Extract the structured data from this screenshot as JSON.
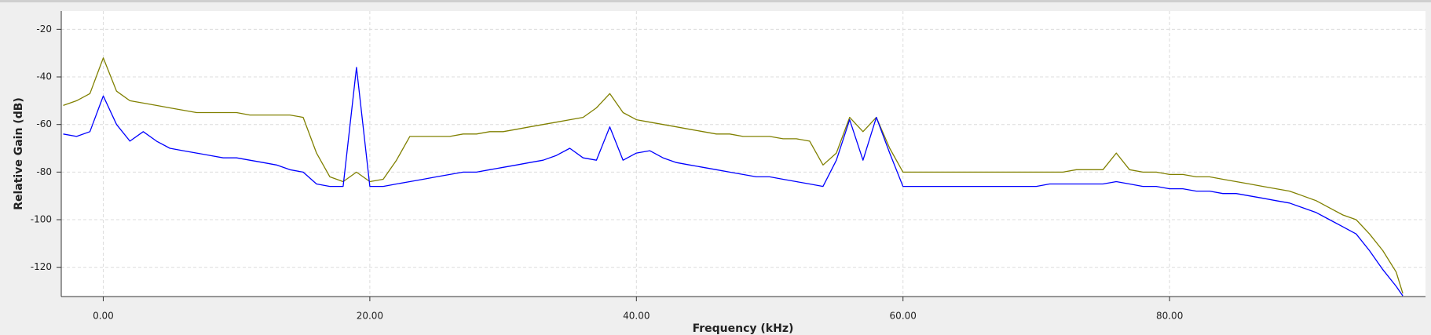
{
  "chart_data": {
    "type": "line",
    "xlabel": "Frequency (kHz)",
    "ylabel": "Relative Gain (dB)",
    "x": [
      -3,
      -2,
      -1,
      0,
      1,
      2,
      3,
      4,
      5,
      6,
      7,
      8,
      9,
      10,
      11,
      12,
      13,
      14,
      15,
      16,
      17,
      18,
      19,
      20,
      21,
      22,
      23,
      24,
      25,
      26,
      27,
      28,
      29,
      30,
      31,
      32,
      33,
      34,
      35,
      36,
      37,
      38,
      39,
      40,
      41,
      42,
      43,
      44,
      45,
      46,
      47,
      48,
      49,
      50,
      51,
      52,
      53,
      54,
      55,
      56,
      57,
      58,
      59,
      60,
      61,
      62,
      63,
      64,
      65,
      66,
      67,
      68,
      69,
      70,
      71,
      72,
      73,
      74,
      75,
      76,
      77,
      78,
      79,
      80,
      81,
      82,
      83,
      84,
      85,
      86,
      87,
      88,
      89,
      90,
      91,
      92,
      93,
      94,
      95,
      96,
      97,
      97.5
    ],
    "series": [
      {
        "color": "#808000",
        "values": [
          -52,
          -50,
          -47,
          -32,
          -46,
          -50,
          -51,
          -52,
          -53,
          -54,
          -55,
          -55,
          -55,
          -55,
          -56,
          -56,
          -56,
          -56,
          -57,
          -72,
          -82,
          -84,
          -80,
          -84,
          -83,
          -75,
          -65,
          -65,
          -65,
          -65,
          -64,
          -64,
          -63,
          -63,
          -62,
          -61,
          -60,
          -59,
          -58,
          -57,
          -53,
          -47,
          -55,
          -58,
          -59,
          -60,
          -61,
          -62,
          -63,
          -64,
          -64,
          -65,
          -65,
          -65,
          -66,
          -66,
          -67,
          -77,
          -72,
          -57,
          -63,
          -57,
          -70,
          -80,
          -80,
          -80,
          -80,
          -80,
          -80,
          -80,
          -80,
          -80,
          -80,
          -80,
          -80,
          -80,
          -79,
          -79,
          -79,
          -72,
          -79,
          -80,
          -80,
          -81,
          -81,
          -82,
          -82,
          -83,
          -84,
          -85,
          -86,
          -87,
          -88,
          -90,
          -92,
          -95,
          -98,
          -100,
          -106,
          -113,
          -122,
          -131
        ]
      },
      {
        "color": "#0000ff",
        "values": [
          -64,
          -65,
          -63,
          -48,
          -60,
          -67,
          -63,
          -67,
          -70,
          -71,
          -72,
          -73,
          -74,
          -74,
          -75,
          -76,
          -77,
          -79,
          -80,
          -85,
          -86,
          -86,
          -36,
          -86,
          -86,
          -85,
          -84,
          -83,
          -82,
          -81,
          -80,
          -80,
          -79,
          -78,
          -77,
          -76,
          -75,
          -73,
          -70,
          -74,
          -75,
          -61,
          -75,
          -72,
          -71,
          -74,
          -76,
          -77,
          -78,
          -79,
          -80,
          -81,
          -82,
          -82,
          -83,
          -84,
          -85,
          -86,
          -75,
          -58,
          -75,
          -57,
          -72,
          -86,
          -86,
          -86,
          -86,
          -86,
          -86,
          -86,
          -86,
          -86,
          -86,
          -86,
          -85,
          -85,
          -85,
          -85,
          -85,
          -84,
          -85,
          -86,
          -86,
          -87,
          -87,
          -88,
          -88,
          -89,
          -89,
          -90,
          -91,
          -92,
          -93,
          -95,
          -97,
          -100,
          -103,
          -106,
          -113,
          -121,
          -128,
          -132
        ]
      }
    ],
    "xlim": [
      -3.15,
      99.2
    ],
    "ylim": [
      -132.3,
      -12.3
    ],
    "xticks": [
      {
        "value": 0,
        "label": "0.00"
      },
      {
        "value": 20,
        "label": "20.00"
      },
      {
        "value": 40,
        "label": "40.00"
      },
      {
        "value": 60,
        "label": "60.00"
      },
      {
        "value": 80,
        "label": "80.00"
      }
    ],
    "yticks": [
      -20,
      -40,
      -60,
      -80,
      -100,
      -120
    ],
    "grid": true
  }
}
